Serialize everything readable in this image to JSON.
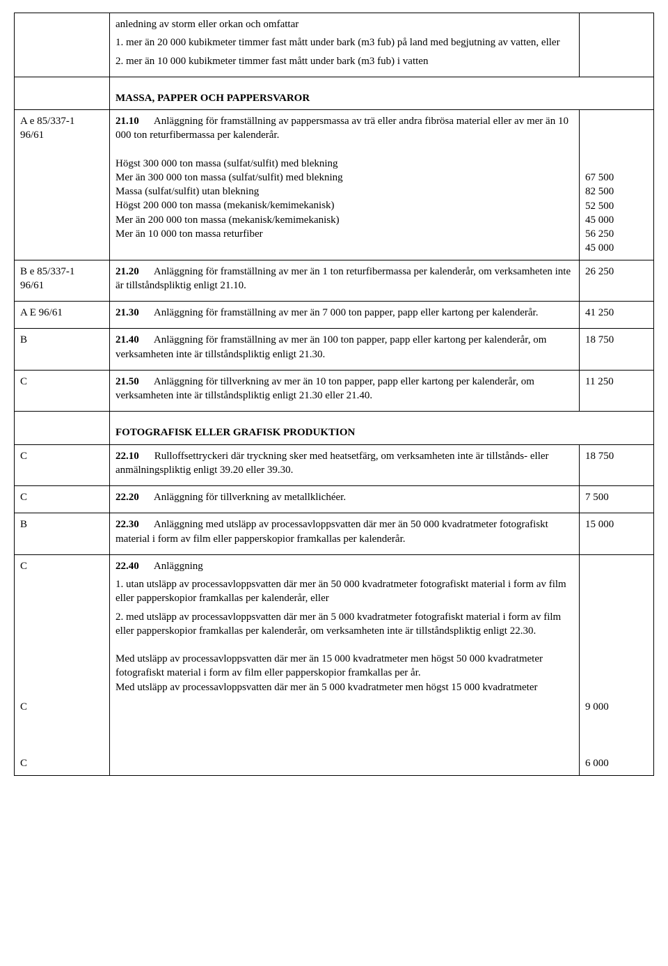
{
  "rows": [
    {
      "code_lines": [],
      "desc": {
        "paras": [
          [
            "anledning av storm eller orkan och omfattar"
          ],
          [
            "1. mer än 20 000 kubikmeter timmer fast mått under bark (m3 fub) på land med begjutning av vatten, eller"
          ],
          [
            "2. mer än 10 000 kubikmeter timmer fast mått under bark (m3 fub) i vatten"
          ]
        ]
      },
      "val_lines": []
    },
    {
      "code_lines": [],
      "desc": {
        "heading": "MASSA, PAPPER OCH PAPPERSVAROR"
      },
      "val_lines": [],
      "heading_row": true
    },
    {
      "code_lines": [
        "A  e  85/337-1",
        "96/61"
      ],
      "desc": {
        "num": "21.10",
        "lead": "Anläggning för framställning av pappersmassa av trä eller andra fibrösa material eller av mer än 10 000 ton returfibermassa per kalenderår.",
        "sublines": [
          "Högst 300 000 ton massa (sulfat/sulfit) med blekning",
          "Mer än 300 000 ton massa (sulfat/sulfit) med blekning",
          "Massa (sulfat/sulfit) utan blekning",
          "Högst 200 000 ton massa (mekanisk/kemimekanisk)",
          "Mer än 200 000 ton massa (mekanisk/kemimekanisk)",
          "Mer än 10 000 ton massa returfiber"
        ]
      },
      "val_lines": [
        "67 500",
        "82 500",
        "52 500",
        "45 000",
        "56 250",
        "45 000"
      ],
      "val_offset_lines": 4
    },
    {
      "code_lines": [
        "B  e  85/337-1",
        "96/61"
      ],
      "desc": {
        "num": "21.20",
        "lead": "Anläggning för framställning av mer än 1 ton returfibermassa per kalenderår, om verksamheten inte är tillståndspliktig enligt 21.10."
      },
      "val_lines": [
        "26 250"
      ]
    },
    {
      "code_lines": [
        "A  E  96/61"
      ],
      "desc": {
        "num": "21.30",
        "lead": "Anläggning för framställning av mer än 7 000 ton papper, papp eller kartong per kalenderår."
      },
      "val_lines": [
        "41 250"
      ]
    },
    {
      "code_lines": [
        "B"
      ],
      "desc": {
        "num": "21.40",
        "lead": "Anläggning för framställning av mer än 100 ton papper, papp eller kartong per kalenderår, om verksamheten inte är tillståndspliktig enligt 21.30."
      },
      "val_lines": [
        "18 750"
      ]
    },
    {
      "code_lines": [
        "C"
      ],
      "desc": {
        "num": "21.50",
        "lead": "Anläggning för tillverkning av mer än 10 ton papper, papp eller kartong per kalenderår, om verksamheten inte är tillståndspliktig enligt 21.30 eller 21.40."
      },
      "val_lines": [
        "11 250"
      ]
    },
    {
      "code_lines": [],
      "desc": {
        "heading": "FOTOGRAFISK ELLER GRAFISK PRODUKTION"
      },
      "val_lines": [],
      "heading_row": true
    },
    {
      "code_lines": [
        "C"
      ],
      "desc": {
        "num": "22.10",
        "lead": "Rulloffsettryckeri där tryckning sker med heatsetfärg, om verksamheten inte är tillstånds- eller anmälningspliktig enligt 39.20 eller 39.30."
      },
      "val_lines": [
        "18 750"
      ]
    },
    {
      "code_lines": [
        "C"
      ],
      "desc": {
        "num": "22.20",
        "lead": "Anläggning för tillverkning av metallklichéer."
      },
      "val_lines": [
        "7 500"
      ]
    },
    {
      "code_lines": [
        "B"
      ],
      "desc": {
        "num": "22.30",
        "lead": "Anläggning med utsläpp av processavloppsvatten där mer än 50 000 kvadratmeter fotografiskt material i form av film eller papperskopior framkallas per kalenderår."
      },
      "val_lines": [
        "15 000"
      ]
    },
    {
      "code_lines": [
        "C",
        "",
        "",
        "",
        "",
        "",
        "",
        "",
        "",
        "",
        "C",
        "",
        "",
        "",
        "C"
      ],
      "desc": {
        "num": "22.40",
        "lead": "Anläggning",
        "extra_paras": [
          "1. utan utsläpp av processavloppsvatten där mer än 50 000 kvadratmeter fotografiskt material i form av film eller papperskopior framkallas per kalenderår, eller",
          "2. med utsläpp av processavloppsvatten där mer än 5 000 kvadratmeter fotografiskt material i form av film eller papperskopior framkallas per kalenderår, om verksamheten inte är tillståndspliktig enligt 22.30."
        ],
        "sublines": [
          "Med utsläpp av processavloppsvatten där mer än 15 000 kvadratmeter men högst 50 000 kvadratmeter fotografiskt material i form av film eller papperskopior framkallas per år.",
          "Med utsläpp av processavloppsvatten där mer än 5 000 kvadratmeter men högst 15 000 kvadratmeter"
        ]
      },
      "val_lines": [
        "9 000",
        "",
        "",
        "",
        "6 000"
      ],
      "val_offset_lines": 10
    }
  ]
}
